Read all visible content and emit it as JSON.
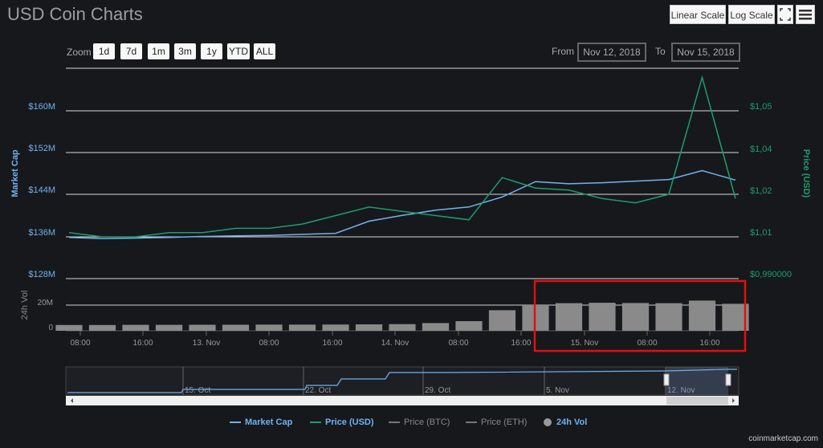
{
  "page": {
    "title": "USD Coin Charts",
    "linear_scale_label": "Linear Scale",
    "log_scale_label": "Log Scale",
    "credit": "coinmarketcap.com"
  },
  "zoom": {
    "label": "Zoom",
    "buttons": [
      "1d",
      "7d",
      "1m",
      "3m",
      "1y",
      "YTD",
      "ALL"
    ]
  },
  "range": {
    "from_label": "From",
    "from_value": "Nov 12, 2018",
    "to_label": "To",
    "to_value": "Nov 15, 2018"
  },
  "colors": {
    "market_cap": "#6fb2f0",
    "price": "#1a9e6e",
    "volume": "#8a8a8a",
    "highlight": "#e01010",
    "background": "#17181b"
  },
  "chart_data": {
    "type": "line",
    "x_tick_labels": [
      "08:00",
      "16:00",
      "13. Nov",
      "08:00",
      "16:00",
      "14. Nov",
      "08:00",
      "16:00",
      "15. Nov",
      "08:00",
      "16:00"
    ],
    "y_left": {
      "label": "Market Cap",
      "ticks": [
        "$128M",
        "$136M",
        "$144M",
        "$152M",
        "$160M"
      ],
      "range": [
        128,
        168
      ],
      "unit": "M USD"
    },
    "y_right": {
      "label": "Price (USD)",
      "ticks": [
        "$0,990000",
        "$1,01",
        "$1,02",
        "$1,04",
        "$1,05"
      ]
    },
    "series": [
      {
        "name": "Market Cap",
        "values": [
          135.8,
          135.6,
          135.7,
          135.8,
          136.0,
          136.1,
          136.2,
          136.4,
          136.6,
          138.9,
          140.0,
          141.0,
          141.6,
          143.5,
          146.4,
          146.0,
          146.2,
          146.5,
          146.8,
          148.5,
          146.7
        ]
      },
      {
        "name": "Price (USD)",
        "values": [
          1.011,
          1.01,
          1.01,
          1.011,
          1.011,
          1.012,
          1.012,
          1.013,
          1.015,
          1.017,
          1.016,
          1.015,
          1.014,
          1.028,
          1.023,
          1.022,
          1.019,
          1.018,
          1.02,
          1.058,
          1.019
        ]
      },
      {
        "name": "Price (BTC)",
        "values": []
      },
      {
        "name": "Price (ETH)",
        "values": []
      },
      {
        "name": "24h Vol",
        "values": [
          4.5,
          4.5,
          4.6,
          4.6,
          4.7,
          4.7,
          4.8,
          4.8,
          4.9,
          5.0,
          5.2,
          6.0,
          7.5,
          16.0,
          20.5,
          21.5,
          21.8,
          21.6,
          21.5,
          23.5,
          21.0
        ]
      }
    ],
    "volume_axis": {
      "label": "24h Vol",
      "ticks": [
        "0",
        "20M"
      ]
    },
    "navigator_labels": [
      "15. Oct",
      "22. Oct",
      "29. Oct",
      "5. Nov",
      "12. Nov"
    ],
    "legend": [
      "Market Cap",
      "Price (USD)",
      "Price (BTC)",
      "Price (ETH)",
      "24h Vol"
    ],
    "legend_position": "bottom-center",
    "grid": true
  }
}
